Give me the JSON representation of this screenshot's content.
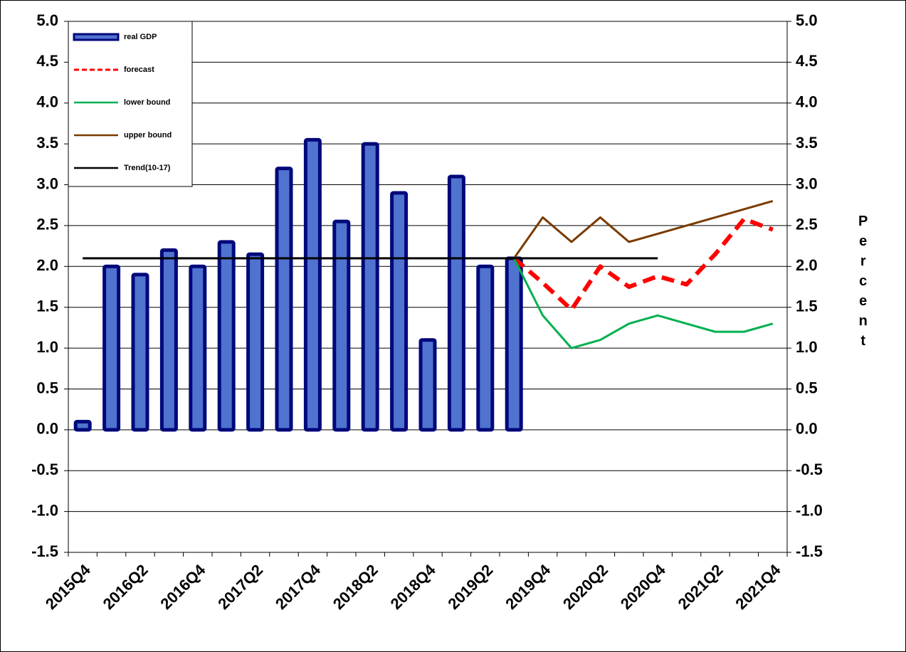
{
  "chart_data": {
    "type": "bar",
    "categories": [
      "2015Q4",
      null,
      "2016Q2",
      null,
      "2016Q4",
      null,
      "2017Q2",
      null,
      "2017Q4",
      null,
      "2018Q2",
      null,
      "2018Q4",
      null,
      "2019Q2",
      null,
      "2019Q4",
      null,
      "2020Q2",
      null,
      "2020Q4",
      null,
      "2021Q2",
      null,
      "2021Q4"
    ],
    "series": [
      {
        "name": "real GDP",
        "type": "bar",
        "color": "#4f73cf",
        "edgecolor": "#00087a",
        "values": [
          0.1,
          2.0,
          1.9,
          2.2,
          2.0,
          2.3,
          2.15,
          3.2,
          3.55,
          2.55,
          3.5,
          2.9,
          1.1,
          3.1,
          2.0,
          2.1,
          null,
          null,
          null,
          null,
          null,
          null,
          null,
          null,
          null
        ]
      },
      {
        "name": "forecast",
        "type": "line",
        "dashed": true,
        "color": "#ff0000",
        "values": [
          null,
          null,
          null,
          null,
          null,
          null,
          null,
          null,
          null,
          null,
          null,
          null,
          null,
          null,
          null,
          2.1,
          1.8,
          1.47,
          2.0,
          1.75,
          1.88,
          1.78,
          2.15,
          2.58,
          2.45
        ]
      },
      {
        "name": "lower bound",
        "type": "line",
        "color": "#00b050",
        "values": [
          null,
          null,
          null,
          null,
          null,
          null,
          null,
          null,
          null,
          null,
          null,
          null,
          null,
          null,
          null,
          2.1,
          1.4,
          1.0,
          1.1,
          1.3,
          1.4,
          1.3,
          1.2,
          1.2,
          1.3
        ]
      },
      {
        "name": "upper bound",
        "type": "line",
        "color": "#7a3b00",
        "values": [
          null,
          null,
          null,
          null,
          null,
          null,
          null,
          null,
          null,
          null,
          null,
          null,
          null,
          null,
          null,
          2.1,
          2.6,
          2.3,
          2.6,
          2.3,
          2.4,
          2.5,
          2.6,
          2.7,
          2.8
        ]
      },
      {
        "name": "Trend(10-17)",
        "type": "line",
        "color": "#000000",
        "values": [
          2.1,
          2.1,
          2.1,
          2.1,
          2.1,
          2.1,
          2.1,
          2.1,
          2.1,
          2.1,
          2.1,
          2.1,
          2.1,
          2.1,
          2.1,
          2.1,
          2.1,
          2.1,
          2.1,
          2.1,
          2.1,
          null,
          null,
          null,
          null
        ]
      }
    ],
    "ylim": [
      -1.5,
      5.0
    ],
    "yticks": [
      {
        "value": -1.5,
        "label": "-1.5"
      },
      {
        "value": -1.0,
        "label": "-1.0"
      },
      {
        "value": -0.5,
        "label": "-0.5"
      },
      {
        "value": 0,
        "label": "0.0"
      },
      {
        "value": 0.5,
        "label": "0.5"
      },
      {
        "value": 1.0,
        "label": "1.0"
      },
      {
        "value": 1.5,
        "label": "1.5"
      },
      {
        "value": 2.0,
        "label": "2.0"
      },
      {
        "value": 2.5,
        "label": "2.5"
      },
      {
        "value": 3.0,
        "label": "3.0"
      },
      {
        "value": 3.5,
        "label": "3.5"
      },
      {
        "value": 4.0,
        "label": "4.0"
      },
      {
        "value": 4.5,
        "label": "4.5"
      },
      {
        "value": 5.0,
        "label": "5.0"
      }
    ],
    "y2lim": [
      -1.5,
      5.0
    ],
    "y2ticks": [
      {
        "value": -1.5,
        "label": "-1.5"
      },
      {
        "value": -1.0,
        "label": "-1.0"
      },
      {
        "value": -0.5,
        "label": "-0.5"
      },
      {
        "value": 0,
        "label": "0.0"
      },
      {
        "value": 0.5,
        "label": "0.5"
      },
      {
        "value": 1.0,
        "label": "1.0"
      },
      {
        "value": 1.5,
        "label": "1.5"
      },
      {
        "value": 2.0,
        "label": "2.0"
      },
      {
        "value": 2.5,
        "label": "2.5"
      },
      {
        "value": 3.0,
        "label": "3.0"
      },
      {
        "value": 3.5,
        "label": "3.5"
      },
      {
        "value": 4.0,
        "label": "4.0"
      },
      {
        "value": 4.5,
        "label": "4.5"
      },
      {
        "value": 5.0,
        "label": "5.0"
      }
    ],
    "y2label": "Percent",
    "grid": true,
    "legend": "upper left"
  }
}
